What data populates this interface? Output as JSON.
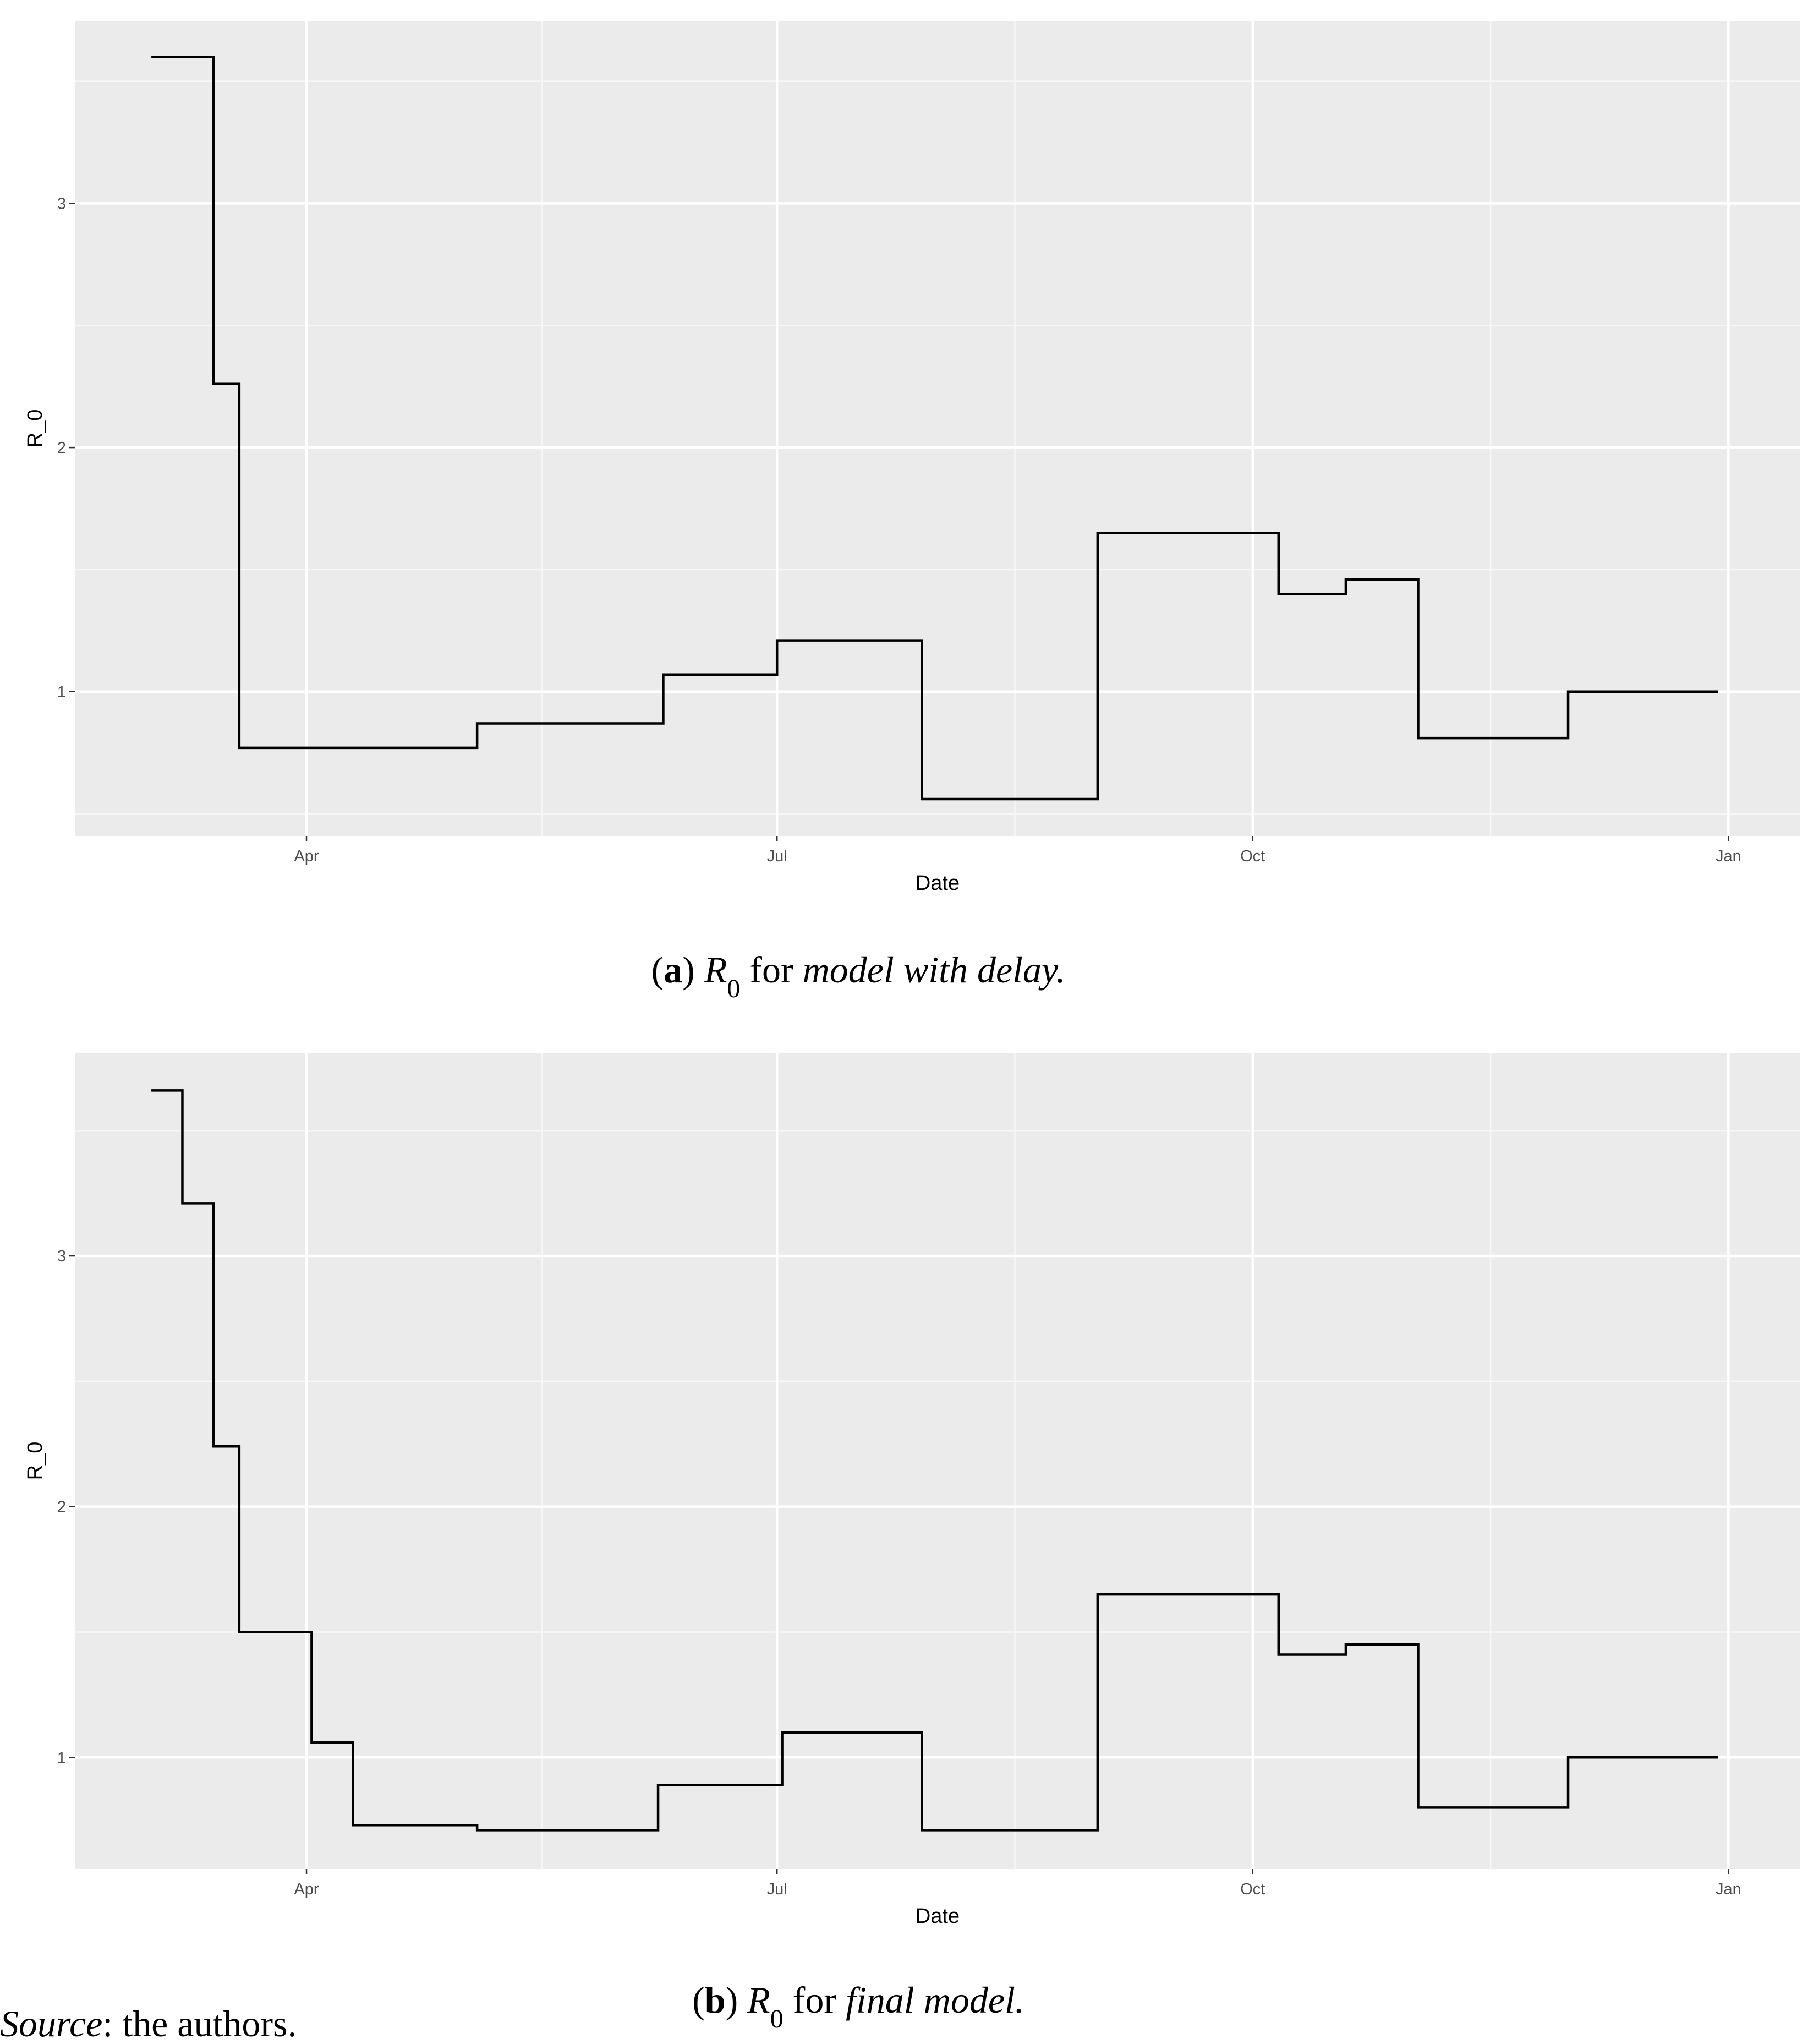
{
  "chart_data": [
    {
      "type": "line",
      "x_label": "Date",
      "y_label": "R_0",
      "x": [
        61,
        73,
        73,
        78,
        78,
        124,
        124,
        160,
        160,
        182,
        182,
        210,
        210,
        244,
        244,
        279,
        279,
        292,
        292,
        306,
        306,
        335,
        335,
        364
      ],
      "values": [
        3.6,
        3.6,
        2.26,
        2.26,
        0.77,
        0.77,
        0.87,
        0.87,
        1.07,
        1.07,
        1.21,
        1.21,
        0.56,
        0.56,
        1.65,
        1.65,
        1.4,
        1.4,
        1.46,
        1.46,
        0.81,
        0.81,
        1.0,
        1.0
      ],
      "color": "#000000",
      "xlim": [
        46.2,
        379.9
      ],
      "ylim": [
        0.409,
        3.747
      ],
      "xticks": [
        {
          "value": 91,
          "label": "Apr"
        },
        {
          "value": 182,
          "label": "Jul"
        },
        {
          "value": 274,
          "label": "Oct"
        },
        {
          "value": 366,
          "label": "Jan"
        }
      ],
      "yticks": [
        1,
        2,
        3
      ],
      "grid": true,
      "caption": [
        {
          "text": "(",
          "style": "normal"
        },
        {
          "text": "a",
          "style": "bold"
        },
        {
          "text": ") ",
          "style": "normal"
        },
        {
          "text": "R",
          "style": "italic"
        },
        {
          "text": "0",
          "style": "sub"
        },
        {
          "text": " for ",
          "style": "normal"
        },
        {
          "text": "model with delay.",
          "style": "italic"
        }
      ]
    },
    {
      "type": "line",
      "x_label": "Date",
      "y_label": "R_0",
      "x": [
        61,
        67,
        67,
        73,
        73,
        78,
        78,
        92,
        92,
        100,
        100,
        124,
        124,
        159,
        159,
        183,
        183,
        210,
        210,
        244,
        244,
        279,
        279,
        292,
        292,
        306,
        306,
        335,
        335,
        364
      ],
      "values": [
        3.66,
        3.66,
        3.21,
        3.21,
        2.24,
        2.24,
        1.5,
        1.5,
        1.06,
        1.06,
        0.73,
        0.73,
        0.71,
        0.71,
        0.89,
        0.89,
        1.1,
        1.1,
        0.71,
        0.71,
        1.65,
        1.65,
        1.41,
        1.41,
        1.45,
        1.45,
        0.8,
        0.8,
        1.0,
        1.0
      ],
      "color": "#000000",
      "xlim": [
        46.2,
        379.9
      ],
      "ylim": [
        0.555,
        3.81
      ],
      "xticks": [
        {
          "value": 91,
          "label": "Apr"
        },
        {
          "value": 182,
          "label": "Jul"
        },
        {
          "value": 274,
          "label": "Oct"
        },
        {
          "value": 366,
          "label": "Jan"
        }
      ],
      "yticks": [
        1,
        2,
        3
      ],
      "grid": true,
      "caption": [
        {
          "text": "(",
          "style": "normal"
        },
        {
          "text": "b",
          "style": "bold"
        },
        {
          "text": ") ",
          "style": "normal"
        },
        {
          "text": "R",
          "style": "italic"
        },
        {
          "text": "0",
          "style": "sub"
        },
        {
          "text": " for ",
          "style": "normal"
        },
        {
          "text": "final model.",
          "style": "italic"
        }
      ]
    }
  ],
  "source": [
    {
      "text": "Source",
      "style": "italic"
    },
    {
      "text": ": the authors.",
      "style": "normal"
    }
  ]
}
